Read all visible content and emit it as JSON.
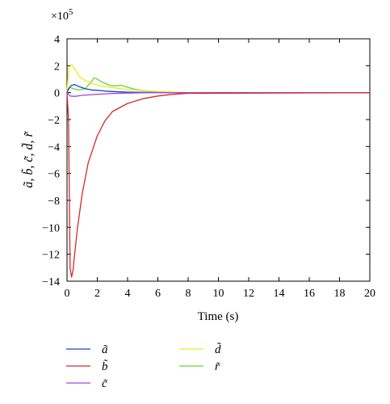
{
  "chart_data": {
    "type": "line",
    "xlabel": "Time (s)",
    "ylabel": "ã, b̃, c̃, d̃, r̃",
    "multiplier_prefix": "×10",
    "multiplier_exponent": "5",
    "xlim": [
      0,
      20
    ],
    "ylim": [
      -14,
      4
    ],
    "x_ticks": [
      "0",
      "2",
      "4",
      "6",
      "8",
      "10",
      "12",
      "14",
      "16",
      "18",
      "20"
    ],
    "y_ticks": [
      "4",
      "2",
      "0",
      "−2",
      "−4",
      "−6",
      "−8",
      "−10",
      "−12",
      "−14"
    ],
    "legend_position": "bottom",
    "series": [
      {
        "name": "ã",
        "color": "#1f3fd6",
        "x": [
          0,
          0.1,
          0.3,
          0.5,
          0.8,
          1.2,
          1.6,
          2.0,
          2.5,
          3.0,
          3.5,
          4.0,
          5.0,
          6.0,
          7.0,
          8.0,
          20.0
        ],
        "y": [
          0.0,
          0.3,
          0.55,
          0.6,
          0.45,
          0.3,
          0.2,
          0.18,
          0.12,
          0.08,
          0.06,
          0.04,
          0.02,
          0.01,
          0.0,
          0.0,
          0.0
        ]
      },
      {
        "name": "b̃",
        "color": "#d42a2a",
        "x": [
          0,
          0.1,
          0.2,
          0.3,
          0.4,
          0.5,
          0.7,
          1.0,
          1.4,
          2.0,
          2.5,
          3.0,
          4.0,
          5.0,
          6.0,
          7.0,
          8.0,
          20.0
        ],
        "y": [
          0.0,
          -2.0,
          -13.0,
          -13.7,
          -13.2,
          -12.0,
          -10.0,
          -7.5,
          -5.2,
          -3.2,
          -2.1,
          -1.4,
          -0.8,
          -0.45,
          -0.25,
          -0.12,
          -0.05,
          0.0
        ]
      },
      {
        "name": "c̃",
        "color": "#a24bd6",
        "x": [
          0,
          0.2,
          0.5,
          1.0,
          2.0,
          3.0,
          4.0,
          5.0,
          6.0,
          20.0
        ],
        "y": [
          0.0,
          -0.25,
          -0.28,
          -0.2,
          -0.12,
          -0.06,
          -0.03,
          -0.01,
          0.0,
          0.0
        ]
      },
      {
        "name": "d̃",
        "color": "#e8ef1f",
        "x": [
          0,
          0.1,
          0.3,
          0.5,
          0.8,
          1.2,
          1.6,
          2.0,
          2.5,
          3.0,
          3.5,
          4.0,
          5.0,
          6.0,
          7.0,
          8.0,
          20.0
        ],
        "y": [
          0.0,
          1.8,
          2.1,
          1.8,
          1.2,
          0.9,
          0.7,
          0.55,
          0.45,
          0.38,
          0.3,
          0.25,
          0.15,
          0.08,
          0.04,
          0.0,
          0.0
        ]
      },
      {
        "name": "r̃",
        "color": "#62d63a",
        "x": [
          0,
          0.2,
          0.4,
          0.8,
          1.2,
          1.6,
          1.8,
          2.0,
          2.3,
          2.8,
          3.2,
          3.6,
          4.0,
          4.5,
          5.0,
          6.0,
          7.0,
          8.0,
          20.0
        ],
        "y": [
          0.0,
          0.4,
          0.3,
          0.2,
          0.3,
          0.8,
          1.1,
          1.0,
          0.8,
          0.55,
          0.5,
          0.55,
          0.4,
          0.25,
          0.15,
          0.06,
          0.02,
          0.0,
          0.0
        ]
      }
    ]
  }
}
